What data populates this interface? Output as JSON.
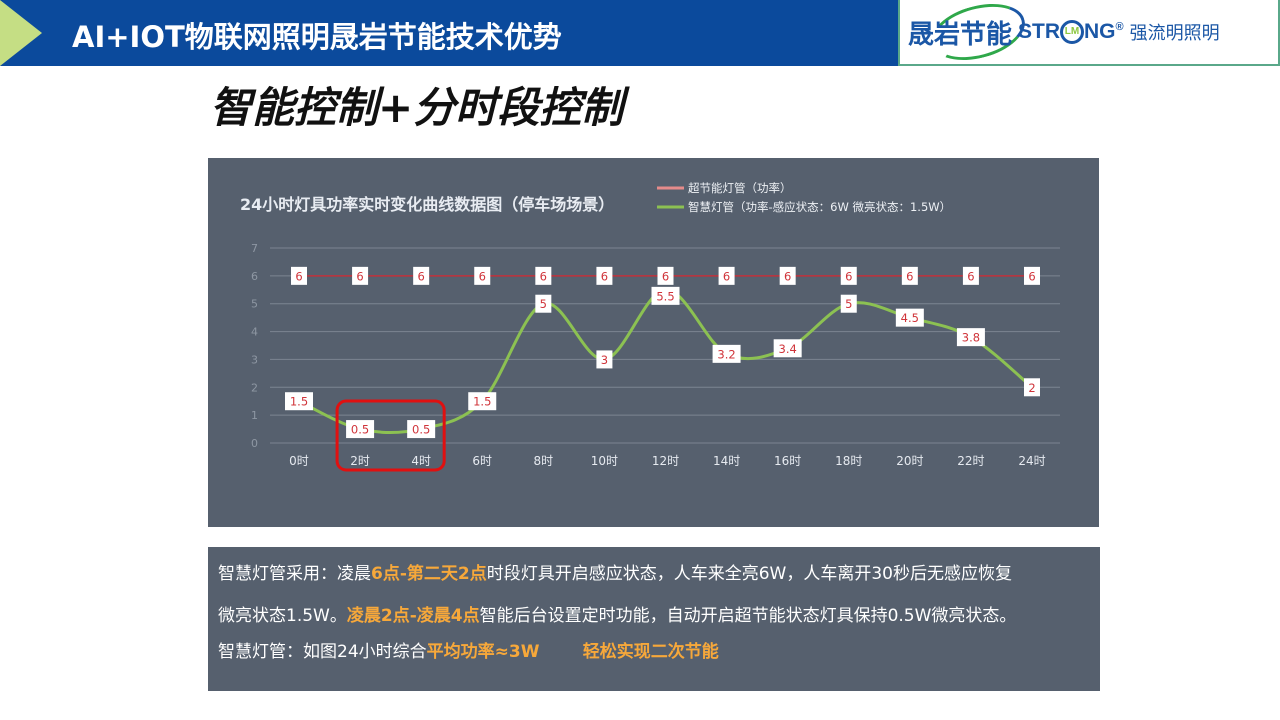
{
  "header": {
    "title": "AI+IOT物联网照明晟岩节能技术优势"
  },
  "logo": {
    "brand1": "晟岩节能",
    "brand2_prefix": "STR",
    "brand2_mark": "LM",
    "brand2_suffix": "NG",
    "registered": "®",
    "brand3": "强流明照明"
  },
  "slide": {
    "subtitle": "智能控制+分时段控制"
  },
  "colors": {
    "header": "#0b4a9c",
    "arrow": "#c5de84",
    "panel": "#56606e",
    "series_super": "#e58b8b",
    "series_smart": "#8cc152",
    "label_text": "#d0343a",
    "highlight_box": "#e01010",
    "highlight_text": "#f7a83a"
  },
  "chart_data": {
    "type": "line",
    "title": "24小时灯具功率实时变化曲线数据图（停车场场景）",
    "categories": [
      "0时",
      "2时",
      "4时",
      "6时",
      "8时",
      "10时",
      "12时",
      "14时",
      "16时",
      "18时",
      "20时",
      "22时",
      "24时"
    ],
    "ylim": [
      0,
      7
    ],
    "yticks": [
      "0",
      "1",
      "2",
      "3",
      "4",
      "5",
      "6",
      "7"
    ],
    "grid": true,
    "legend_placement": "top-right",
    "series": [
      {
        "name": "超节能灯管（功率）",
        "color": "#e58b8b",
        "values": [
          6,
          6,
          6,
          6,
          6,
          6,
          6,
          6,
          6,
          6,
          6,
          6,
          6
        ],
        "labels": [
          "6",
          "6",
          "6",
          "6",
          "6",
          "6",
          "6",
          "6",
          "6",
          "6",
          "6",
          "6",
          "6"
        ]
      },
      {
        "name": "智慧灯管（功率-感应状态：6W      微亮状态：1.5W）",
        "color": "#8cc152",
        "smooth": true,
        "values": [
          1.5,
          0.5,
          0.5,
          1.5,
          5,
          3,
          5.5,
          3.2,
          3.4,
          5,
          4.5,
          3.8,
          2
        ],
        "labels": [
          "1.5",
          "0.5",
          "0.5",
          "1.5",
          "5",
          "3",
          "5.5",
          "3.2",
          "3.4",
          "5",
          "4.5",
          "3.8",
          "2"
        ]
      }
    ],
    "annotation": {
      "type": "highlight-box",
      "categories": [
        "2时",
        "4时"
      ]
    }
  },
  "description": {
    "line1": [
      {
        "t": "智慧灯管采用：凌晨",
        "h": false
      },
      {
        "t": "6点-第二天2点",
        "h": true
      },
      {
        "t": "时段灯具开启感应状态，人车来全亮6W，人车离开30秒后无感应恢复",
        "h": false
      }
    ],
    "line2": [
      {
        "t": "微亮状态1.5W。",
        "h": false
      },
      {
        "t": "凌晨2点-凌晨4点",
        "h": true
      },
      {
        "t": "智能后台设置定时功能，自动开启超节能状态灯具保持0.5W微亮状态。",
        "h": false
      }
    ],
    "line3": [
      {
        "t": "智慧灯管：如图24小时综合",
        "h": false
      },
      {
        "t": "平均功率≈3W",
        "h": true
      },
      {
        "t": "        ",
        "h": false
      },
      {
        "t": "轻松实现二次节能",
        "h": true
      }
    ]
  }
}
